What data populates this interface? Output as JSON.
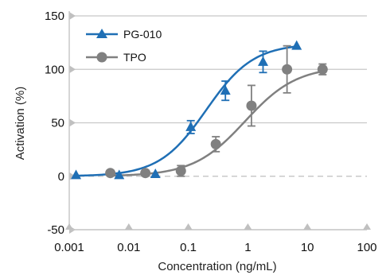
{
  "chart_data": {
    "type": "line",
    "title": "",
    "xlabel": "Concentration (ng/mL)",
    "ylabel": "Activation (%)",
    "x_scale": "log",
    "xlim": [
      0.001,
      100
    ],
    "ylim": [
      -50,
      150
    ],
    "x_ticks": [
      0.001,
      0.01,
      0.1,
      1,
      10,
      100
    ],
    "x_tick_labels": [
      "0.001",
      "0.01",
      "0.1",
      "1",
      "10",
      "100"
    ],
    "y_ticks": [
      -50,
      0,
      50,
      100,
      150
    ],
    "y_tick_labels": [
      "-50",
      "0",
      "50",
      "100",
      "150"
    ],
    "grid": "horizontal",
    "zero_line": "dashed",
    "legend_position": "top-left",
    "series": [
      {
        "name": "PG-010",
        "marker": "triangle",
        "color": "#1f6fb5",
        "points": [
          {
            "x": 0.0013,
            "y": 1,
            "err": 0
          },
          {
            "x": 0.0069,
            "y": 1,
            "err": 0
          },
          {
            "x": 0.028,
            "y": 2,
            "err": 0
          },
          {
            "x": 0.11,
            "y": 46,
            "err": 6
          },
          {
            "x": 0.42,
            "y": 80,
            "err": 9
          },
          {
            "x": 1.8,
            "y": 107,
            "err": 10
          },
          {
            "x": 6.6,
            "y": 122,
            "err": 0
          }
        ],
        "curve": {
          "bottom": 0,
          "top": 124,
          "ec50": 0.2,
          "hill": 1.1
        }
      },
      {
        "name": "TPO",
        "marker": "circle",
        "color": "#808080",
        "points": [
          {
            "x": 0.0049,
            "y": 3,
            "err": 0
          },
          {
            "x": 0.019,
            "y": 3,
            "err": 0
          },
          {
            "x": 0.075,
            "y": 5,
            "err": 5
          },
          {
            "x": 0.29,
            "y": 30,
            "err": 7
          },
          {
            "x": 1.15,
            "y": 66,
            "err": 19
          },
          {
            "x": 4.55,
            "y": 100,
            "err": 22
          },
          {
            "x": 18,
            "y": 100,
            "err": 5
          }
        ],
        "curve": {
          "bottom": 0,
          "top": 103,
          "ec50": 0.9,
          "hill": 1.0
        }
      }
    ]
  }
}
